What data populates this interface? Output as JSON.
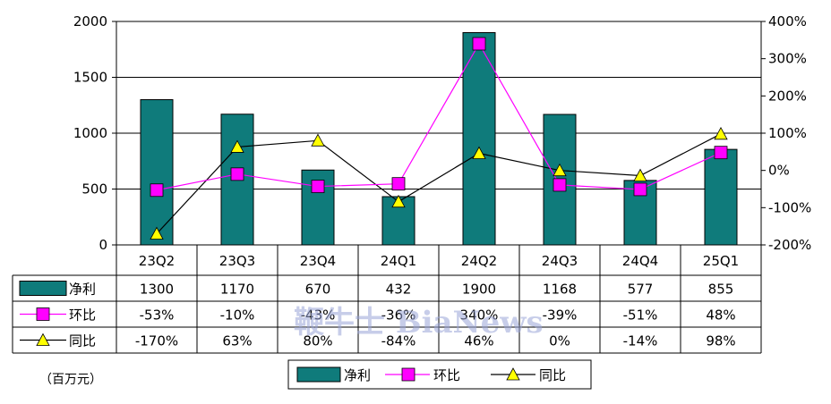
{
  "chart_data": {
    "type": "bar",
    "categories": [
      "23Q2",
      "23Q3",
      "23Q4",
      "24Q1",
      "24Q2",
      "24Q3",
      "24Q4",
      "25Q1"
    ],
    "series": [
      {
        "name": "净利",
        "type": "bar",
        "axis": "left",
        "values": [
          1300,
          1170,
          670,
          432,
          1900,
          1168,
          577,
          855
        ],
        "labels": [
          "1300",
          "1170",
          "670",
          "432",
          "1900",
          "1168",
          "577",
          "855"
        ],
        "color": "#0f7b7b"
      },
      {
        "name": "环比",
        "type": "line",
        "axis": "right",
        "values": [
          -53,
          -10,
          -43,
          -36,
          340,
          -39,
          -51,
          48
        ],
        "labels": [
          "-53%",
          "-10%",
          "-43%",
          "-36%",
          "340%",
          "-39%",
          "-51%",
          "48%"
        ],
        "color": "#ff00ff",
        "marker": "square"
      },
      {
        "name": "同比",
        "type": "line",
        "axis": "right",
        "values": [
          -170,
          63,
          80,
          -84,
          46,
          0,
          -14,
          98
        ],
        "labels": [
          "-170%",
          "63%",
          "80%",
          "-84%",
          "46%",
          "0%",
          "-14%",
          "98%"
        ],
        "color": "#000000",
        "marker": "triangle",
        "marker_color": "#ffff00"
      }
    ],
    "left_axis": {
      "range": [
        0,
        2000
      ],
      "ticks": [
        0,
        500,
        1000,
        1500,
        2000
      ],
      "tick_labels": [
        "0",
        "500",
        "1000",
        "1500",
        "2000"
      ]
    },
    "right_axis": {
      "range": [
        -200,
        400
      ],
      "ticks": [
        -200,
        -100,
        0,
        100,
        200,
        300,
        400
      ],
      "tick_labels": [
        "-200%",
        "-100%",
        "0%",
        "100%",
        "200%",
        "300%",
        "400%"
      ]
    },
    "unit": "（百万元）",
    "grid": true,
    "legend_placement": "bottom",
    "data_table": true
  },
  "watermark": "鞭牛士 BiaNews"
}
